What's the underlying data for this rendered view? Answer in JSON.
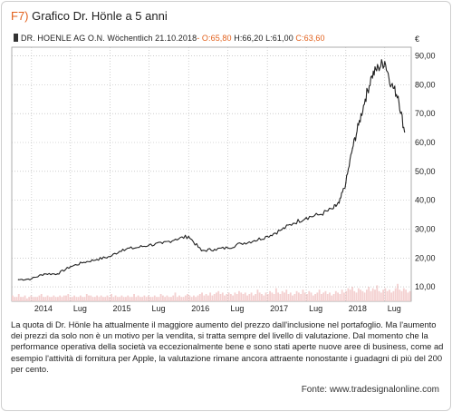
{
  "figure": {
    "label": "F7)",
    "title": "Grafico Dr. Hönle a 5 anni"
  },
  "legend": {
    "instrument": "DR. HOENLE AG O.N. Wöchentlich",
    "date": "21.10.2018",
    "open": "- O:65,80",
    "high": "H:66,20",
    "low": "L:61,00",
    "close": "C:63,60"
  },
  "colors": {
    "price_line": "#222222",
    "volume_bars": "#f4d0d0",
    "grid": "#b0b0b0",
    "accent": "#e2601c"
  },
  "chart_data": {
    "type": "line",
    "title": "Grafico Dr. Hönle a 5 anni",
    "currency_label": "€",
    "x_tick_labels": [
      "2014",
      "Lug",
      "2015",
      "Lug",
      "2016",
      "Lug",
      "2017",
      "Lug",
      "2018",
      "Lug"
    ],
    "y_tick_labels": [
      "10,00",
      "20,00",
      "30,00",
      "40,00",
      "50,00",
      "60,00",
      "70,00",
      "80,00",
      "90,00"
    ],
    "ylim": [
      5,
      93
    ],
    "grid": true,
    "y_axis_position": "right",
    "series": [
      {
        "x": [
          "2013-11",
          "2014-01",
          "2014-03",
          "2014-05",
          "2014-07",
          "2014-09",
          "2014-11",
          "2015-01",
          "2015-03",
          "2015-05",
          "2015-07",
          "2015-09",
          "2015-11",
          "2016-01",
          "2016-03",
          "2016-05",
          "2016-07",
          "2016-09",
          "2016-11",
          "2017-01",
          "2017-03",
          "2017-05",
          "2017-07",
          "2017-09",
          "2017-11",
          "2017-12",
          "2018-01",
          "2018-02",
          "2018-03",
          "2018-04",
          "2018-05",
          "2018-06",
          "2018-07",
          "2018-08",
          "2018-09",
          "2018-10"
        ],
        "values": [
          12.5,
          12.8,
          14.5,
          14.5,
          17,
          18.5,
          19.5,
          20.5,
          23,
          23.5,
          24.5,
          25,
          26.5,
          27.5,
          22.5,
          23,
          23.5,
          25,
          26,
          27.5,
          29.5,
          32,
          34,
          35,
          37,
          39,
          46,
          58,
          66,
          75,
          83,
          86,
          88,
          80,
          76,
          63.6
        ]
      }
    ],
    "volume": [
      4,
      3,
      3,
      5,
      3,
      3,
      4,
      2,
      3,
      4,
      3,
      3,
      3,
      4,
      5,
      3,
      3,
      4,
      3,
      3,
      4,
      3,
      3,
      4,
      3,
      4,
      4,
      5,
      3,
      3,
      4,
      3,
      3,
      4,
      3,
      3,
      5,
      4,
      4,
      3,
      3,
      4,
      3,
      4,
      3,
      3,
      4,
      3,
      5,
      3,
      4,
      3,
      3,
      4,
      3,
      3,
      4,
      3,
      3,
      5,
      3,
      4,
      3,
      3,
      4,
      3,
      4,
      3,
      3,
      4,
      3,
      3,
      5,
      4,
      3,
      4,
      3,
      3,
      4,
      6,
      3,
      4,
      3,
      3,
      4,
      5,
      4,
      3,
      4,
      3,
      4,
      5,
      6,
      4,
      5,
      4,
      6,
      4,
      5,
      6,
      7,
      5,
      6,
      4,
      5,
      6,
      5,
      4,
      6,
      5,
      7,
      6,
      5,
      6,
      4,
      5,
      6,
      4,
      5,
      8,
      6,
      5,
      4,
      6,
      5,
      7,
      6,
      5,
      9,
      6,
      5,
      7,
      6,
      8,
      5,
      6,
      4,
      5,
      7,
      6,
      5,
      8,
      6,
      5,
      7,
      6,
      4,
      5,
      6,
      8,
      5,
      6,
      7,
      5,
      6,
      4,
      5,
      7,
      6,
      5,
      8,
      6,
      7,
      9,
      8,
      10,
      7,
      6,
      9,
      8,
      7,
      6,
      8,
      10,
      7,
      9,
      8,
      11,
      7,
      6,
      8,
      9,
      7,
      8,
      6,
      7,
      9,
      12,
      8,
      7,
      9,
      8,
      6,
      7
    ]
  },
  "caption": "La quota di Dr. Hönle ha attualmente il maggiore aumento del prezzo dall'inclusione nel portafoglio. Ma l'aumento dei prezzi da solo non è un motivo per la vendita, si tratta sempre del livello di valutazione. Dal momento che la performance operativa della società va eccezionalmente bene e sono stati aperte nuove aree di business, come ad esempio l'attività di fornitura per Apple, la valutazione rimane ancora attraente nonostante i guadagni di più del 200 per cento.",
  "source": "Fonte: www.tradesignalonline.com"
}
